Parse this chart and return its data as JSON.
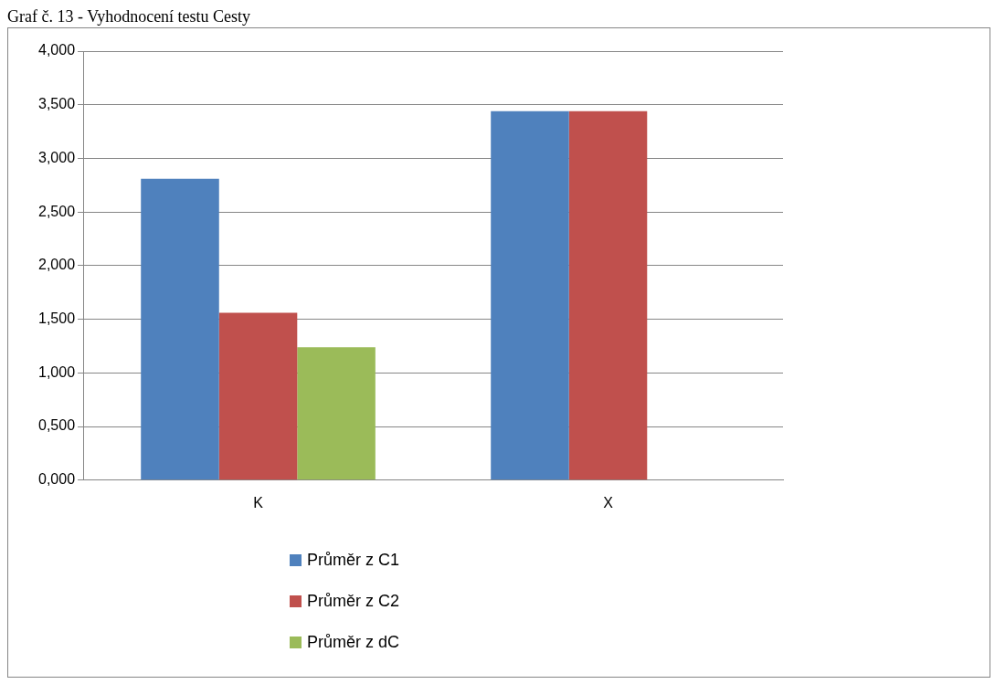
{
  "chart_data": {
    "type": "bar",
    "title": "Graf č. 13 - Vyhodnocení testu Cesty",
    "categories": [
      "K",
      "X"
    ],
    "series": [
      {
        "name": "Průměr z C1",
        "color": "#4f81bd",
        "values": [
          2.81,
          3.44
        ]
      },
      {
        "name": "Průměr z C2",
        "color": "#c0504d",
        "values": [
          1.56,
          3.44
        ]
      },
      {
        "name": "Průměr z dC",
        "color": "#9bbb59",
        "values": [
          1.24,
          null
        ]
      }
    ],
    "ylim": [
      0,
      4
    ],
    "yticks": [
      {
        "value": 0,
        "label": "0,000"
      },
      {
        "value": 0.5,
        "label": "0,500"
      },
      {
        "value": 1,
        "label": "1,000"
      },
      {
        "value": 1.5,
        "label": "1,500"
      },
      {
        "value": 2,
        "label": "2,000"
      },
      {
        "value": 2.5,
        "label": "2,500"
      },
      {
        "value": 3,
        "label": "3,000"
      },
      {
        "value": 3.5,
        "label": "3,500"
      },
      {
        "value": 4,
        "label": "4,000"
      }
    ],
    "grid": "y",
    "legend": "bottom"
  }
}
